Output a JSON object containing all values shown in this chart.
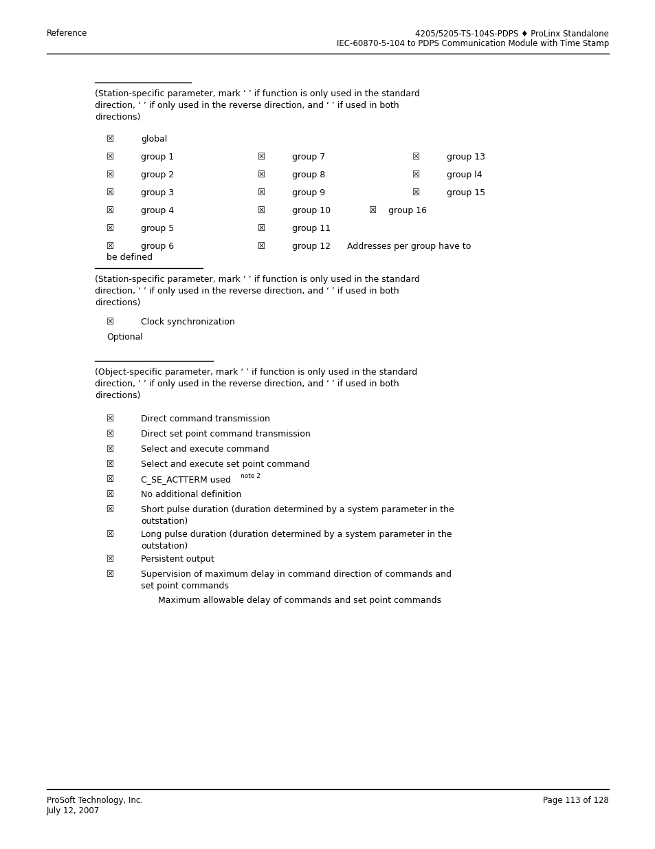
{
  "bg_color": "#ffffff",
  "header_left": "Reference",
  "header_right_line1": "4205/5205-TS-104S-PDPS ♦ ProLinx Standalone",
  "header_right_line2": "IEC-60870-5-104 to PDPS Communication Module with Time Stamp",
  "footer_left_line1": "ProSoft Technology, Inc.",
  "footer_left_line2": "July 12, 2007",
  "footer_right": "Page 113 of 128",
  "font_size_body": 9.0,
  "font_size_header": 8.5,
  "text_color": "#000000",
  "checkbox_checked": "☒",
  "checkbox_unchecked": "☐"
}
